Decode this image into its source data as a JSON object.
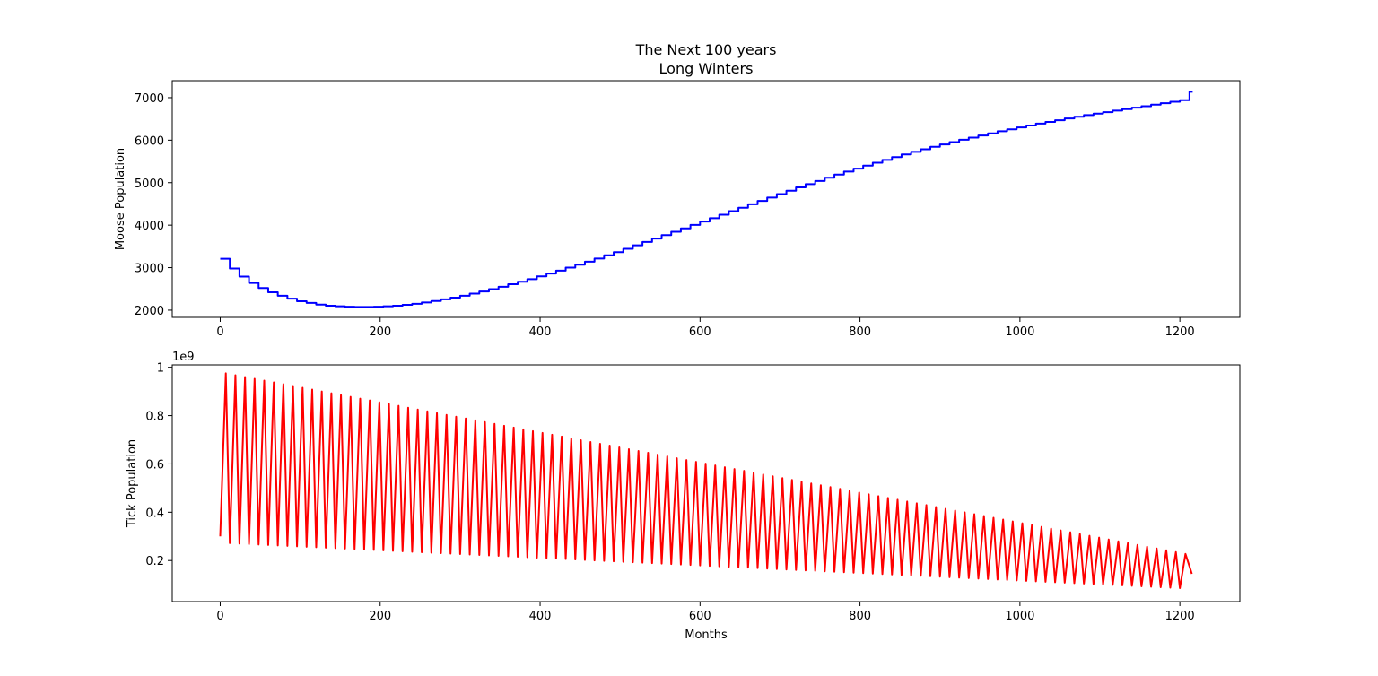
{
  "chart_data": [
    {
      "type": "line",
      "title": "The Next 100 years",
      "subtitle": "Long Winters",
      "xlabel": "",
      "ylabel": "Moose Population",
      "xlim": [
        -60,
        1275
      ],
      "ylim": [
        1830,
        7400
      ],
      "xticks": [
        0,
        200,
        400,
        600,
        800,
        1000,
        1200
      ],
      "yticks": [
        2000,
        3000,
        4000,
        5000,
        6000,
        7000
      ],
      "grid": false,
      "color": "#0000ff",
      "step": "annual (12 months)",
      "series": [
        {
          "x": [
            0,
            12,
            24,
            36,
            48,
            60,
            72,
            84,
            96,
            108,
            120,
            132,
            144,
            156,
            168,
            180,
            192,
            204,
            216,
            228,
            240,
            252,
            264,
            276,
            288,
            300,
            312,
            324,
            336,
            348,
            360,
            372,
            384,
            396,
            408,
            420,
            432,
            444,
            456,
            468,
            480,
            492,
            504,
            516,
            528,
            540,
            552,
            564,
            576,
            588,
            600,
            612,
            624,
            636,
            648,
            660,
            672,
            684,
            696,
            708,
            720,
            732,
            744,
            756,
            768,
            780,
            792,
            804,
            816,
            828,
            840,
            852,
            864,
            876,
            888,
            900,
            912,
            924,
            936,
            948,
            960,
            972,
            984,
            996,
            1008,
            1020,
            1032,
            1044,
            1056,
            1068,
            1080,
            1092,
            1104,
            1116,
            1128,
            1140,
            1152,
            1164,
            1176,
            1188,
            1200,
            1212
          ],
          "values": [
            3210,
            2980,
            2790,
            2640,
            2520,
            2420,
            2340,
            2270,
            2210,
            2170,
            2130,
            2105,
            2090,
            2080,
            2075,
            2075,
            2080,
            2090,
            2105,
            2125,
            2150,
            2180,
            2215,
            2255,
            2295,
            2340,
            2390,
            2440,
            2495,
            2550,
            2610,
            2670,
            2730,
            2795,
            2860,
            2930,
            3000,
            3070,
            3140,
            3215,
            3290,
            3365,
            3445,
            3525,
            3605,
            3685,
            3765,
            3845,
            3925,
            4005,
            4085,
            4165,
            4245,
            4330,
            4410,
            4490,
            4570,
            4650,
            4730,
            4810,
            4890,
            4965,
            5040,
            5115,
            5190,
            5260,
            5330,
            5400,
            5470,
            5535,
            5600,
            5665,
            5725,
            5785,
            5845,
            5900,
            5955,
            6010,
            6060,
            6110,
            6160,
            6210,
            6255,
            6300,
            6345,
            6390,
            6430,
            6470,
            6510,
            6550,
            6590,
            6625,
            6660,
            6695,
            6730,
            6765,
            6800,
            6835,
            6870,
            6905,
            6940,
            7140
          ]
        }
      ]
    },
    {
      "type": "line",
      "title": "",
      "xlabel": "Months",
      "ylabel": "Tick Population",
      "offset_label": "1e9",
      "xlim": [
        -60,
        1275
      ],
      "ylim": [
        0.03,
        1.01
      ],
      "xticks": [
        0,
        200,
        400,
        600,
        800,
        1000,
        1200
      ],
      "yticks": [
        0.2,
        0.4,
        0.6,
        0.8,
        1.0
      ],
      "grid": false,
      "color": "#ff0000",
      "pattern": "sawtooth, 12-month period",
      "series": [
        {
          "period_months": 12,
          "peak_offset_months": 7,
          "start_value": 0.3,
          "peaks": [
            0.975,
            0.22
          ],
          "troughs": [
            0.272,
            0.082
          ],
          "last_x": 1215,
          "last_value": 0.145
        }
      ]
    }
  ]
}
